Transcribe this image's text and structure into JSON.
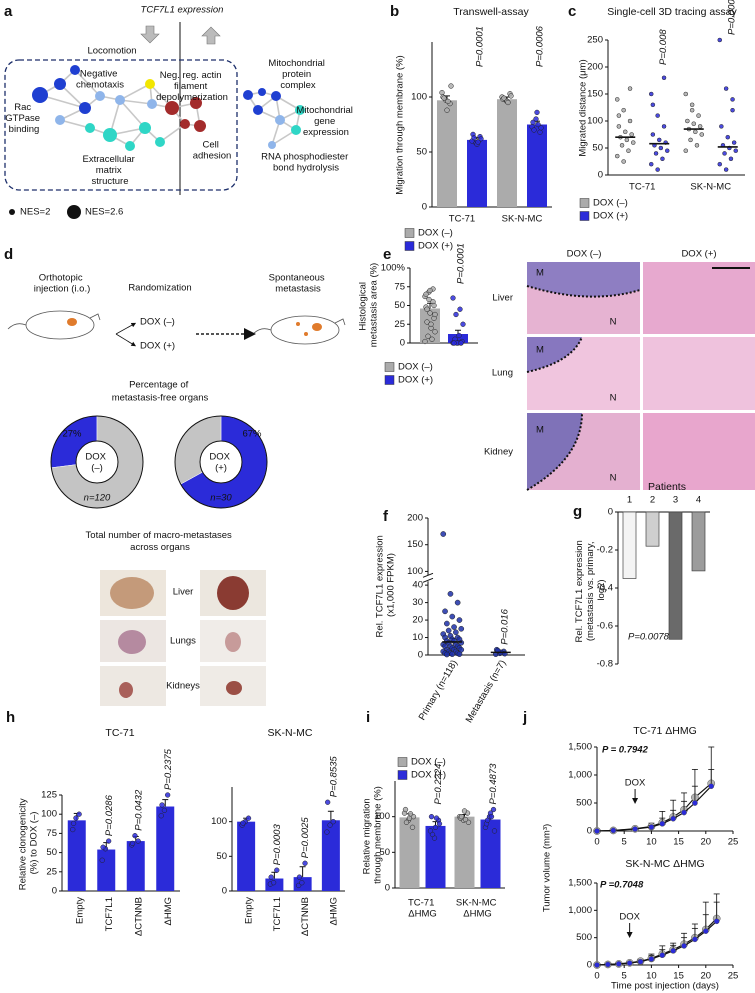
{
  "network": {
    "panel": "a",
    "title": "TCF7L1 expression",
    "group": "Locomotion",
    "terms": [
      "Negative chemotaxis",
      "Neg. reg. actin filament depolymerization",
      "Rac GTPase binding",
      "Cell adhesion",
      "Extracellular matrix structure",
      "Mitochondrial protein complex",
      "Mitochondrial gene expression",
      "RNA phosphodiester bond hydrolysis"
    ],
    "legend": [
      "NES=2",
      "NES=2.6"
    ]
  },
  "schematic": {
    "panel": "d",
    "steps": [
      "Orthotopic injection (i.o.)",
      "Randomization",
      "Spontaneous metastasis"
    ],
    "arms": [
      "DOX (–)",
      "DOX (+)"
    ],
    "donut_title": "Percentage of metastasis-free organs",
    "donut_caption": "Total number of macro-metastases across organs",
    "organs": [
      "Liver",
      "Lungs",
      "Kidneys"
    ]
  },
  "histology": {
    "columns": [
      "DOX (–)",
      "DOX (+)"
    ],
    "rows": [
      "Liver",
      "Lung",
      "Kidney"
    ],
    "regions": [
      "M",
      "N"
    ]
  },
  "chart_data": [
    {
      "panel": "b",
      "type": "bar",
      "title": "Transwell-assay",
      "y_label": "Migration through membrane (%)",
      "categories": [
        "TC-71",
        "SK-N-MC"
      ],
      "series": [
        {
          "name": "DOX (–)",
          "color": "#ababab",
          "values": [
            97,
            98
          ],
          "errors": [
            4,
            2
          ],
          "points": [
            [
              104,
              97,
              94,
              100,
              88,
              110,
              99,
              96
            ],
            [
              100,
              97,
              103,
              98,
              96,
              101,
              99,
              95
            ]
          ]
        },
        {
          "name": "DOX (+)",
          "color": "#2b2bd9",
          "values": [
            61,
            75
          ],
          "errors": [
            2,
            3
          ],
          "points": [
            [
              60,
              58,
              64,
              66,
              57,
              62,
              63,
              59
            ],
            [
              73,
              80,
              68,
              77,
              86,
              72,
              70,
              75
            ]
          ]
        }
      ],
      "ylim": [
        0,
        150
      ],
      "yticks": [
        0,
        50,
        100
      ],
      "annotations": [
        "P=0.0001",
        "P=0.0006"
      ]
    },
    {
      "panel": "c",
      "type": "dot",
      "title": "Single-cell 3D tracing assay",
      "y_label": "Migrated distance (μm)",
      "categories": [
        "TC-71",
        "SK-N-MC"
      ],
      "series": [
        {
          "name": "DOX (–)",
          "color": "#ababab",
          "values": [
            70,
            85
          ],
          "points": [
            [
              140,
              120,
              100,
              90,
              80,
              75,
              70,
              65,
              60,
              55,
              45,
              35,
              25,
              160,
              110
            ],
            [
              150,
              130,
              110,
              100,
              95,
              90,
              85,
              80,
              75,
              65,
              55,
              45,
              120
            ]
          ]
        },
        {
          "name": "DOX (+)",
          "color": "#2b2bd9",
          "values": [
            58,
            52
          ],
          "points": [
            [
              150,
              110,
              90,
              75,
              65,
              60,
              55,
              50,
              45,
              40,
              30,
              20,
              10,
              180,
              130
            ],
            [
              250,
              160,
              120,
              90,
              70,
              60,
              55,
              50,
              45,
              40,
              30,
              20,
              10,
              140
            ]
          ]
        }
      ],
      "ylim": [
        0,
        250
      ],
      "yticks": [
        0,
        50,
        100,
        150,
        200,
        250
      ],
      "annotations": [
        "P=0.008",
        "P=0.0001"
      ]
    },
    {
      "panel": "e",
      "type": "bar",
      "y_label": "Histological metastasis area (%)",
      "categories": [
        null
      ],
      "series": [
        {
          "name": "DOX (–)",
          "color": "#ababab",
          "values": [
            46
          ],
          "errors": [
            7
          ],
          "points": [
            [
              62,
              68,
              55,
              48,
              40,
              33,
              28,
              20,
              15,
              9,
              5,
              2,
              58,
              72,
              65,
              70,
              50,
              45,
              25,
              38
            ]
          ]
        },
        {
          "name": "DOX (+)",
          "color": "#2b2bd9",
          "values": [
            12
          ],
          "errors": [
            5
          ],
          "points": [
            [
              0,
              0,
              0,
              0,
              0,
              2,
              5,
              10,
              25,
              38,
              45,
              60,
              0,
              0,
              0
            ]
          ]
        }
      ],
      "ylim": [
        0,
        100
      ],
      "yticks": [
        0,
        25,
        50,
        75,
        {
          "value": 100,
          "label": "100%"
        }
      ],
      "annotations": [
        "P=0.0001"
      ]
    },
    {
      "panel": "f",
      "type": "dot",
      "y_label": "Rel. TCF7L1 expression (x1,000 FPKM)",
      "categories": [
        "Primary (n=118)",
        "Metastasis (n=7)"
      ],
      "series": [
        {
          "color": "#1c2fa8",
          "values": [
            7.5,
            1.5
          ],
          "errors": [
            2,
            0.5
          ],
          "points": [
            [
              170,
              35,
              30,
              25,
              22,
              20,
              18,
              16,
              15,
              14,
              13,
              12,
              11,
              10,
              10,
              9,
              9,
              8,
              8,
              7,
              7,
              6,
              6,
              5,
              5,
              5,
              4,
              4,
              3,
              3,
              3,
              2,
              2,
              2,
              1,
              1,
              1,
              0.5,
              0.5,
              0.3
            ],
            [
              0.5,
              1,
              2,
              3,
              1.5,
              0.8,
              2.5
            ]
          ]
        }
      ],
      "ylim": [
        0,
        200
      ],
      "y_break": [
        40,
        100
      ],
      "yticks": [
        0,
        10,
        20,
        30,
        40,
        100,
        150,
        200
      ],
      "annotations": [
        null,
        "P=0.016"
      ]
    },
    {
      "panel": "g",
      "type": "bar",
      "title": "Patients",
      "y_label": "Rel. TCF7L1 expression (metastasis vs. primary, log2)",
      "categories": [
        "1",
        "2",
        "3",
        "4"
      ],
      "values": [
        -0.35,
        -0.18,
        -0.67,
        -0.31
      ],
      "colors": [
        "#f4f4f4",
        "#cfcfcf",
        "#6a6a6a",
        "#9c9c9c"
      ],
      "ylim": [
        -0.8,
        0
      ],
      "yticks": [
        0,
        -0.2,
        -0.4,
        -0.6,
        -0.8
      ],
      "annotation": "P=0.0078"
    },
    {
      "panel": "h",
      "type": "bar",
      "title": "TC-71",
      "y_label": "Relative clonogenicity (%) to DOX (–)",
      "categories": [
        "Empty",
        "TCF7L1",
        "ΔCTNNB",
        "ΔHMG"
      ],
      "values": [
        92,
        54,
        65,
        110
      ],
      "errors": [
        9,
        9,
        6,
        9
      ],
      "color": "#2b2bd9",
      "points": [
        [
          80,
          95,
          100,
          88
        ],
        [
          40,
          55,
          65,
          57
        ],
        [
          60,
          72,
          65,
          62
        ],
        [
          98,
          105,
          125,
          112
        ]
      ],
      "ylim": [
        0,
        125
      ],
      "yticks": [
        0,
        25,
        50,
        75,
        100,
        125
      ],
      "annotations": [
        null,
        "P=0.0286",
        "P=0.0432",
        "P=0.2375"
      ]
    },
    {
      "type": "bar",
      "title": "SK-N-MC",
      "categories": [
        "Empty",
        "TCF7L1",
        "ΔCTNNB",
        "ΔHMG"
      ],
      "values": [
        100,
        18,
        20,
        102
      ],
      "errors": [
        5,
        9,
        15,
        13
      ],
      "color": "#2b2bd9",
      "points": [
        [
          95,
          100,
          105,
          98
        ],
        [
          10,
          12,
          30,
          20
        ],
        [
          8,
          12,
          40,
          20
        ],
        [
          85,
          95,
          100,
          128
        ]
      ],
      "ylim": [
        0,
        150
      ],
      "yticks": [
        0,
        50,
        100
      ],
      "annotations": [
        null,
        "P=0.0003",
        "P=0.0025",
        "P=0.8535"
      ]
    },
    {
      "panel": "i",
      "type": "bar",
      "y_label": "Relative migration through membrane (%)",
      "categories": [
        "TC-71 ΔHMG",
        "SK-N-MC ΔHMG"
      ],
      "series": [
        {
          "name": "DOX (–)",
          "color": "#ababab",
          "values": [
            99,
            100
          ],
          "errors": [
            5,
            3
          ],
          "points": [
            [
              105,
              95,
              85,
              110,
              98,
              100,
              92,
              104
            ],
            [
              100,
              95,
              105,
              98,
              108,
              92,
              100,
              96
            ]
          ]
        },
        {
          "name": "DOX (+)",
          "color": "#2b2bd9",
          "values": [
            87,
            96
          ],
          "errors": [
            6,
            5
          ],
          "points": [
            [
              80,
              70,
              95,
              100,
              85,
              90,
              75,
              98
            ],
            [
              85,
              100,
              110,
              90,
              105,
              80,
              95,
              100
            ]
          ]
        }
      ],
      "ylim": [
        0,
        150
      ],
      "yticks": [
        0,
        50,
        100
      ],
      "annotations": [
        "P=0.2224",
        "P=0.4873"
      ]
    },
    {
      "panel": "j",
      "type": "line",
      "title": "TC-71 ΔHMG",
      "y_label": "Tumor volume (mm³)",
      "annotation": "P = 0.7942",
      "arrow": {
        "label": "DOX",
        "x": 7
      },
      "x": [
        0,
        3,
        7,
        10,
        12,
        14,
        16,
        18,
        21
      ],
      "series": [
        {
          "color": "#b5b5b5",
          "values": [
            0,
            10,
            40,
            80,
            150,
            250,
            380,
            600,
            850
          ],
          "errors": [
            0,
            5,
            20,
            60,
            200,
            300,
            300,
            500,
            650
          ]
        },
        {
          "color": "#2b2bd9",
          "values": [
            0,
            10,
            35,
            70,
            130,
            220,
            330,
            500,
            800
          ],
          "errors": [
            0,
            5,
            15,
            30,
            100,
            150,
            200,
            300,
            300
          ]
        }
      ],
      "xlim": [
        0,
        25
      ],
      "xticks": [
        0,
        5,
        10,
        15,
        20,
        25
      ],
      "ylim": [
        0,
        1500
      ],
      "yticks": [
        0,
        500,
        {
          "value": 1000,
          "label": "1,000"
        },
        {
          "value": 1500,
          "label": "1,500"
        }
      ]
    },
    {
      "type": "line",
      "title": "SK-N-MC ΔHMG",
      "x_label": "Time post injection (days)",
      "annotation": "P =0.7048",
      "arrow": {
        "label": "DOX",
        "x": 6
      },
      "x": [
        0,
        2,
        4,
        6,
        8,
        10,
        12,
        14,
        16,
        18,
        20,
        22
      ],
      "series": [
        {
          "color": "#b5b5b5",
          "values": [
            0,
            10,
            20,
            40,
            70,
            120,
            200,
            280,
            380,
            500,
            650,
            850
          ],
          "errors": [
            0,
            5,
            10,
            20,
            40,
            80,
            150,
            120,
            200,
            250,
            500,
            450
          ]
        },
        {
          "color": "#2b2bd9",
          "values": [
            0,
            10,
            20,
            35,
            60,
            110,
            180,
            260,
            350,
            470,
            620,
            800
          ],
          "errors": [
            0,
            5,
            10,
            15,
            30,
            60,
            100,
            100,
            150,
            200,
            300,
            350
          ]
        }
      ],
      "xlim": [
        0,
        25
      ],
      "xticks": [
        0,
        5,
        10,
        15,
        20,
        25
      ],
      "ylim": [
        0,
        1500
      ],
      "yticks": [
        0,
        500,
        {
          "value": 1000,
          "label": "1,000"
        },
        {
          "value": 1500,
          "label": "1,500"
        }
      ]
    },
    {
      "type": "donut",
      "center_label": "DOX (–)",
      "n_label": "n=120",
      "values": [
        27,
        73
      ],
      "value_labels": [
        "27%",
        null
      ],
      "colors": [
        "#2b2bd9",
        "#c4c4c4"
      ]
    },
    {
      "type": "donut",
      "center_label": "DOX (+)",
      "n_label": "n=30",
      "values": [
        67,
        33
      ],
      "value_labels": [
        "67%",
        null
      ],
      "colors": [
        "#2b2bd9",
        "#c4c4c4"
      ]
    }
  ]
}
